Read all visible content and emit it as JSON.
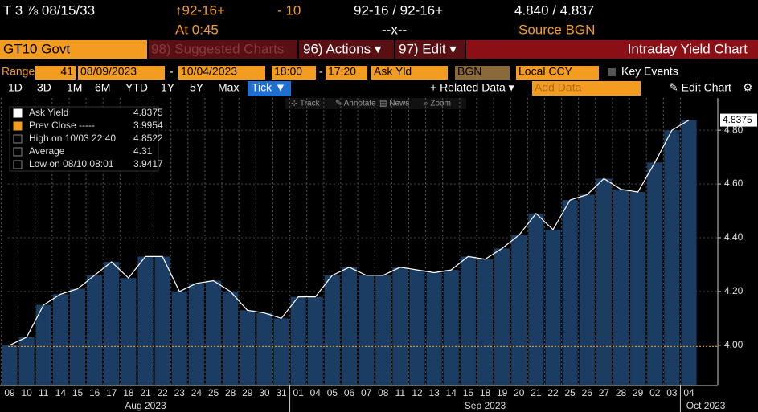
{
  "header": {
    "security": "T 3 ⅞ 08/15/33",
    "change": "↑92-16+",
    "change2": "- 10",
    "bid_ask": "92-16 / 92-16+",
    "yields": "4.840 / 4.837",
    "time": "At 0:45",
    "mid": "--x--",
    "source": "Source BGN"
  },
  "menu": {
    "ticker": "GT10 Govt",
    "suggested": "98) Suggested Charts",
    "actions": "96) Actions ▾",
    "edit": "97) Edit ▾",
    "title": "Intraday Yield Chart"
  },
  "range": {
    "label": "Range",
    "count": "41",
    "start": "08/09/2023",
    "dash": "-",
    "end": "10/04/2023",
    "from": "18:00",
    "to": "17:20",
    "field": "Ask Yld",
    "source": "BGN",
    "currency": "Local CCY",
    "events": "Key Events"
  },
  "periods": [
    "1D",
    "3D",
    "1M",
    "6M",
    "YTD",
    "1Y",
    "5Y",
    "Max"
  ],
  "active_period": "Tick ▼",
  "related": "+ Related Data ▾",
  "add_data": "Add Data",
  "edit_chart": "✎ Edit Chart",
  "tools": [
    "⊹ Track",
    "✎ Annotate",
    "▤ News",
    "⌕ Zoom"
  ],
  "chart_data": {
    "type": "bar",
    "categories": [
      "09",
      "10",
      "11",
      "14",
      "15",
      "16",
      "17",
      "18",
      "21",
      "22",
      "23",
      "24",
      "25",
      "28",
      "29",
      "30",
      "31",
      "01",
      "04",
      "05",
      "06",
      "07",
      "08",
      "11",
      "12",
      "13",
      "14",
      "15",
      "18",
      "19",
      "20",
      "21",
      "22",
      "25",
      "26",
      "27",
      "28",
      "29",
      "02",
      "03",
      "04"
    ],
    "months": [
      "Aug 2023",
      "Sep 2023",
      "Oct 2023"
    ],
    "series": [
      {
        "name": "Ask Yield",
        "color": "#1c3d63",
        "values": [
          4.0,
          4.03,
          4.15,
          4.19,
          4.21,
          4.26,
          4.31,
          4.25,
          4.33,
          4.33,
          4.2,
          4.23,
          4.24,
          4.2,
          4.13,
          4.12,
          4.1,
          4.18,
          4.18,
          4.26,
          4.29,
          4.26,
          4.26,
          4.29,
          4.28,
          4.27,
          4.28,
          4.33,
          4.32,
          4.36,
          4.41,
          4.49,
          4.43,
          4.54,
          4.56,
          4.62,
          4.58,
          4.57,
          4.68,
          4.8,
          4.8375
        ]
      }
    ],
    "legend": [
      {
        "label": "Ask Yield",
        "value": 4.8375
      },
      {
        "label": "Prev Close -----",
        "value": 3.9954
      },
      {
        "label": "High on 10/03 22:40",
        "value": 4.8522
      },
      {
        "label": "Average",
        "value": 4.31
      },
      {
        "label": "Low on 08/10 08:01",
        "value": 3.9417
      }
    ],
    "ylim": [
      3.85,
      4.92
    ],
    "yticks": [
      {
        "value": 4,
        "label": "4.00"
      },
      {
        "value": 4.2,
        "label": "4.20"
      },
      {
        "value": 4.4,
        "label": "4.40"
      },
      {
        "value": 4.6,
        "label": "4.60"
      },
      {
        "value": 4.8,
        "label": "4.80"
      }
    ],
    "grid": true
  }
}
